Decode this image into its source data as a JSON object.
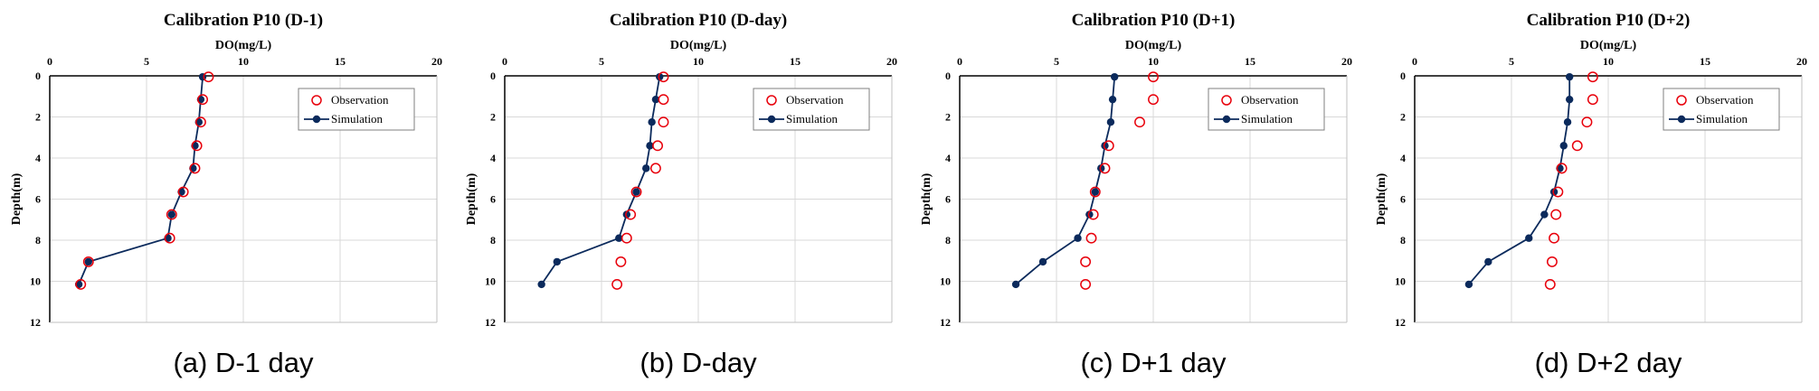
{
  "chart_data": [
    {
      "type": "scatter",
      "title": "Calibration P10 (D-1)",
      "xlabel": "DO(mg/L)",
      "ylabel": "Depth(m)",
      "xlim": [
        0,
        20
      ],
      "ylim": [
        0,
        12
      ],
      "x_ticks": [
        "0",
        "5",
        "10",
        "15",
        "20"
      ],
      "y_ticks": [
        "0",
        "2",
        "4",
        "6",
        "8",
        "10",
        "12"
      ],
      "grid": true,
      "legend_position": "top-right",
      "caption": "(a) D-1 day",
      "series": [
        {
          "name": "Observation",
          "marker": "open-circle",
          "color": "#e8000b",
          "points": [
            [
              8.2,
              0.05
            ],
            [
              7.9,
              1.15
            ],
            [
              7.8,
              2.25
            ],
            [
              7.6,
              3.4
            ],
            [
              7.5,
              4.5
            ],
            [
              6.9,
              5.65
            ],
            [
              6.3,
              6.75
            ],
            [
              6.2,
              7.9
            ],
            [
              2.0,
              9.05
            ],
            [
              1.6,
              10.15
            ]
          ]
        },
        {
          "name": "Simulation",
          "marker": "filled-circle-line",
          "color": "#0b2a5c",
          "points": [
            [
              7.9,
              0.05
            ],
            [
              7.8,
              1.15
            ],
            [
              7.7,
              2.25
            ],
            [
              7.5,
              3.4
            ],
            [
              7.4,
              4.5
            ],
            [
              6.8,
              5.65
            ],
            [
              6.3,
              6.75
            ],
            [
              6.1,
              7.9
            ],
            [
              2.0,
              9.05
            ],
            [
              1.5,
              10.15
            ]
          ]
        }
      ]
    },
    {
      "type": "scatter",
      "title": "Calibration P10 (D-day)",
      "xlabel": "DO(mg/L)",
      "ylabel": "Depth(m)",
      "xlim": [
        0,
        20
      ],
      "ylim": [
        0,
        12
      ],
      "x_ticks": [
        "0",
        "5",
        "10",
        "15",
        "20"
      ],
      "y_ticks": [
        "0",
        "2",
        "4",
        "6",
        "8",
        "10",
        "12"
      ],
      "grid": true,
      "legend_position": "top-right",
      "caption": "(b) D-day",
      "series": [
        {
          "name": "Observation",
          "marker": "open-circle",
          "color": "#e8000b",
          "points": [
            [
              8.2,
              0.05
            ],
            [
              8.2,
              1.15
            ],
            [
              8.2,
              2.25
            ],
            [
              7.9,
              3.4
            ],
            [
              7.8,
              4.5
            ],
            [
              6.8,
              5.65
            ],
            [
              6.5,
              6.75
            ],
            [
              6.3,
              7.9
            ],
            [
              6.0,
              9.05
            ],
            [
              5.8,
              10.15
            ]
          ]
        },
        {
          "name": "Simulation",
          "marker": "filled-circle-line",
          "color": "#0b2a5c",
          "points": [
            [
              8.0,
              0.05
            ],
            [
              7.8,
              1.15
            ],
            [
              7.6,
              2.25
            ],
            [
              7.5,
              3.4
            ],
            [
              7.3,
              4.5
            ],
            [
              6.8,
              5.65
            ],
            [
              6.3,
              6.75
            ],
            [
              5.9,
              7.9
            ],
            [
              2.7,
              9.05
            ],
            [
              1.9,
              10.15
            ]
          ]
        }
      ]
    },
    {
      "type": "scatter",
      "title": "Calibration P10 (D+1)",
      "xlabel": "DO(mg/L)",
      "ylabel": "Depth(m)",
      "xlim": [
        0,
        20
      ],
      "ylim": [
        0,
        12
      ],
      "x_ticks": [
        "0",
        "5",
        "10",
        "15",
        "20"
      ],
      "y_ticks": [
        "0",
        "2",
        "4",
        "6",
        "8",
        "10",
        "12"
      ],
      "grid": true,
      "legend_position": "top-right",
      "caption": "(c) D+1 day",
      "series": [
        {
          "name": "Observation",
          "marker": "open-circle",
          "color": "#e8000b",
          "points": [
            [
              10.0,
              0.05
            ],
            [
              10.0,
              1.15
            ],
            [
              9.3,
              2.25
            ],
            [
              7.7,
              3.4
            ],
            [
              7.5,
              4.5
            ],
            [
              7.0,
              5.65
            ],
            [
              6.9,
              6.75
            ],
            [
              6.8,
              7.9
            ],
            [
              6.5,
              9.05
            ],
            [
              6.5,
              10.15
            ]
          ]
        },
        {
          "name": "Simulation",
          "marker": "filled-circle-line",
          "color": "#0b2a5c",
          "points": [
            [
              8.0,
              0.05
            ],
            [
              7.9,
              1.15
            ],
            [
              7.8,
              2.25
            ],
            [
              7.5,
              3.4
            ],
            [
              7.3,
              4.5
            ],
            [
              7.0,
              5.65
            ],
            [
              6.7,
              6.75
            ],
            [
              6.1,
              7.9
            ],
            [
              4.3,
              9.05
            ],
            [
              2.9,
              10.15
            ]
          ]
        }
      ]
    },
    {
      "type": "scatter",
      "title": "Calibration P10 (D+2)",
      "xlabel": "DO(mg/L)",
      "ylabel": "Depth(m)",
      "xlim": [
        0,
        20
      ],
      "ylim": [
        0,
        12
      ],
      "x_ticks": [
        "0",
        "5",
        "10",
        "15",
        "20"
      ],
      "y_ticks": [
        "0",
        "2",
        "4",
        "6",
        "8",
        "10",
        "12"
      ],
      "grid": true,
      "legend_position": "top-right",
      "caption": "(d) D+2 day",
      "series": [
        {
          "name": "Observation",
          "marker": "open-circle",
          "color": "#e8000b",
          "points": [
            [
              9.2,
              0.05
            ],
            [
              9.2,
              1.15
            ],
            [
              8.9,
              2.25
            ],
            [
              8.4,
              3.4
            ],
            [
              7.6,
              4.5
            ],
            [
              7.4,
              5.65
            ],
            [
              7.3,
              6.75
            ],
            [
              7.2,
              7.9
            ],
            [
              7.1,
              9.05
            ],
            [
              7.0,
              10.15
            ]
          ]
        },
        {
          "name": "Simulation",
          "marker": "filled-circle-line",
          "color": "#0b2a5c",
          "points": [
            [
              8.0,
              0.05
            ],
            [
              8.0,
              1.15
            ],
            [
              7.9,
              2.25
            ],
            [
              7.7,
              3.4
            ],
            [
              7.5,
              4.5
            ],
            [
              7.2,
              5.65
            ],
            [
              6.7,
              6.75
            ],
            [
              5.9,
              7.9
            ],
            [
              3.8,
              9.05
            ],
            [
              2.8,
              10.15
            ]
          ]
        }
      ]
    }
  ]
}
